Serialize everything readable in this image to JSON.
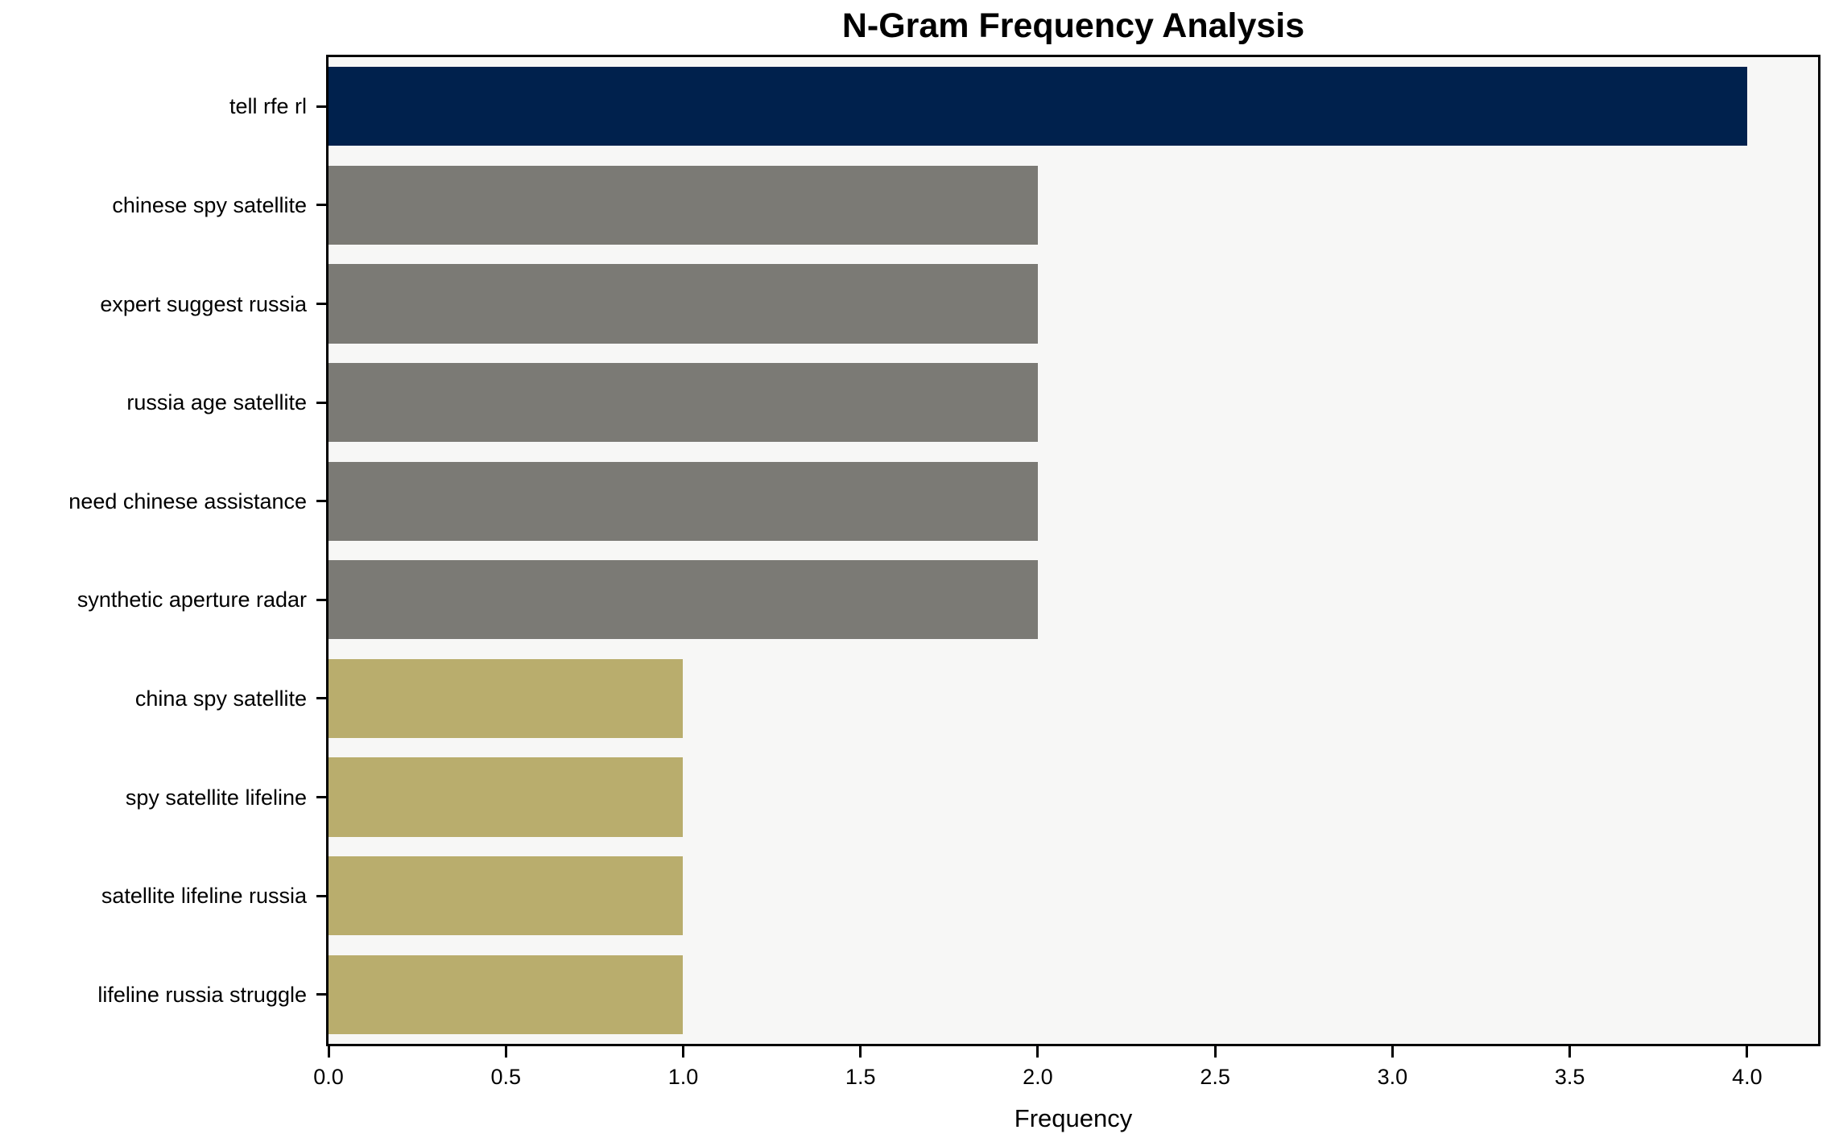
{
  "chart_data": {
    "type": "bar",
    "orientation": "horizontal",
    "title": "N-Gram Frequency Analysis",
    "xlabel": "Frequency",
    "ylabel": "",
    "categories": [
      "tell rfe rl",
      "chinese spy satellite",
      "expert suggest russia",
      "russia age satellite",
      "need chinese assistance",
      "synthetic aperture radar",
      "china spy satellite",
      "spy satellite lifeline",
      "satellite lifeline russia",
      "lifeline russia struggle"
    ],
    "values": [
      4,
      2,
      2,
      2,
      2,
      2,
      1,
      1,
      1,
      1
    ],
    "bar_colors": [
      "#00214d",
      "#7b7a75",
      "#7b7a75",
      "#7b7a75",
      "#7b7a75",
      "#7b7a75",
      "#b9ad6d",
      "#b9ad6d",
      "#b9ad6d",
      "#b9ad6d"
    ],
    "xlim": [
      0,
      4.2
    ],
    "x_tick_values": [
      0,
      0.5,
      1,
      1.5,
      2,
      2.5,
      3,
      3.5,
      4
    ],
    "x_tick_labels": [
      "0.0",
      "0.5",
      "1.0",
      "1.5",
      "2.0",
      "2.5",
      "3.0",
      "3.5",
      "4.0"
    ],
    "grid": false,
    "legend": null,
    "plot_background": "#f7f7f6",
    "figure_background": "#ffffff",
    "spine_color": "#000000"
  }
}
